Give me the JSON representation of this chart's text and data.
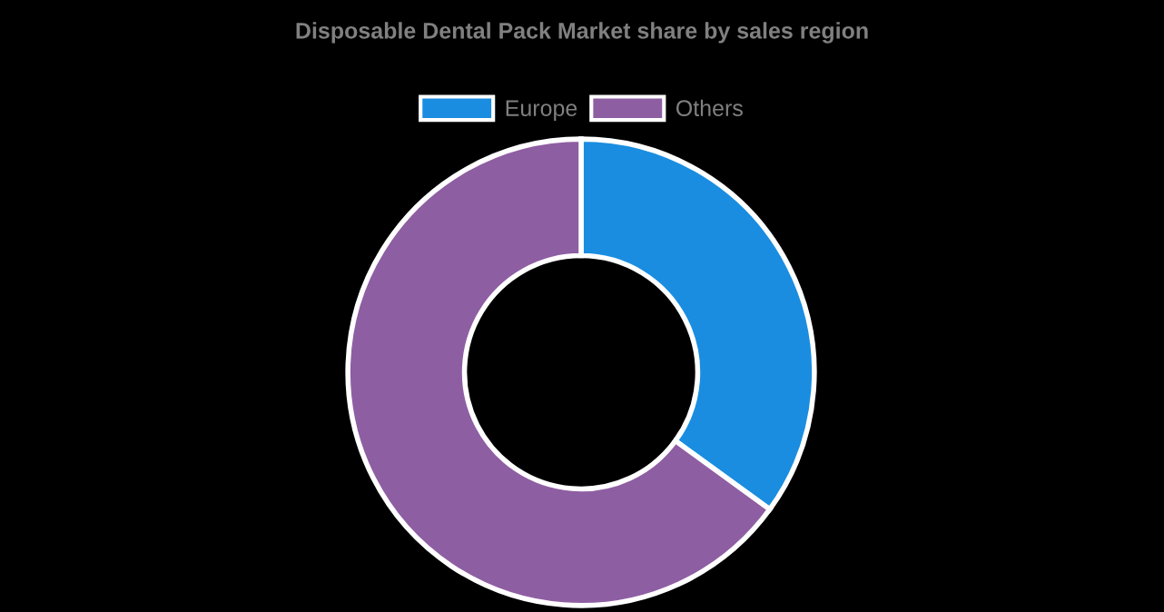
{
  "chart_data": {
    "type": "donut",
    "title": "Disposable Dental Pack Market share by sales region",
    "categories": [
      "Europe",
      "Others"
    ],
    "values": [
      35,
      65
    ],
    "colors": [
      "#1a8de0",
      "#8e5ea2"
    ],
    "legend": "top"
  }
}
